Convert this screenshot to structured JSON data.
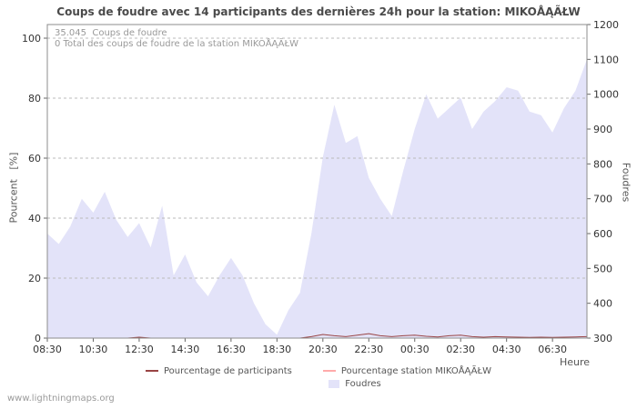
{
  "title": "Coups de foudre avec 14 participants des dernières 24h pour la station: MIKOÅĄÃŁW",
  "annotations": {
    "line1": "35.045  Coups de foudre",
    "line2": "0 Total des coups de foudre de la station MIKOÅĄÃŁW"
  },
  "axes": {
    "left_label": "Pourcent   [%]",
    "right_label": "Foudres",
    "x_label": "Heure"
  },
  "watermark": "www.lightningmaps.org",
  "colors": {
    "area_fill": "#e3e3f9",
    "participants_line": "#994444",
    "station_line": "#ffaaaa",
    "grid": "#bbbbbb",
    "plot_border": "#8c8c8c"
  },
  "chart_data": {
    "type": "area",
    "title": "Coups de foudre avec 14 participants des dernières 24h pour la station: MIKOÅĄÃŁW",
    "xlabel": "Heure",
    "grid": true,
    "legend_position": "bottom",
    "tick_every": 4,
    "x": [
      "08:30",
      "09:00",
      "09:30",
      "10:00",
      "10:30",
      "11:00",
      "11:30",
      "12:00",
      "12:30",
      "13:00",
      "13:30",
      "14:00",
      "14:30",
      "15:00",
      "15:30",
      "16:00",
      "16:30",
      "17:00",
      "17:30",
      "18:00",
      "18:30",
      "19:00",
      "19:30",
      "20:00",
      "20:30",
      "21:00",
      "21:30",
      "22:00",
      "22:30",
      "23:00",
      "23:30",
      "00:00",
      "00:30",
      "01:00",
      "01:30",
      "02:00",
      "02:30",
      "03:00",
      "03:30",
      "04:00",
      "04:30",
      "05:00",
      "05:30",
      "06:00",
      "06:30",
      "07:00",
      "07:30",
      "08:00"
    ],
    "x_ticks": [
      "08:30",
      "10:30",
      "12:30",
      "14:30",
      "16:30",
      "18:30",
      "20:30",
      "22:30",
      "00:30",
      "02:30",
      "04:30",
      "06:30"
    ],
    "left_axis": {
      "label": "Pourcent [%]",
      "min": 0,
      "max": 100,
      "ticks": [
        0,
        20,
        40,
        60,
        80,
        100
      ]
    },
    "right_axis": {
      "label": "Foudres",
      "min": 300,
      "max": 1200,
      "ticks": [
        300,
        400,
        500,
        600,
        700,
        800,
        900,
        1000,
        1100,
        1200
      ]
    },
    "series": [
      {
        "name": "Foudres",
        "type": "area",
        "axis": "right",
        "color": "#e3e3f9",
        "values": [
          600,
          570,
          620,
          700,
          660,
          720,
          640,
          590,
          630,
          560,
          680,
          480,
          540,
          460,
          420,
          480,
          530,
          480,
          400,
          340,
          310,
          380,
          430,
          600,
          820,
          970,
          860,
          880,
          760,
          700,
          650,
          780,
          900,
          1000,
          930,
          960,
          990,
          900,
          950,
          980,
          1020,
          1010,
          950,
          940,
          890,
          960,
          1010,
          1100
        ]
      },
      {
        "name": "Pourcentage de participants",
        "type": "line",
        "axis": "left",
        "color": "#994444",
        "values": [
          0,
          0,
          0,
          0,
          0,
          0,
          0,
          0,
          0.3,
          0,
          0,
          0,
          0,
          0,
          0,
          0,
          0,
          0,
          0,
          0,
          0,
          0,
          0,
          0.5,
          1.2,
          0.8,
          0.5,
          1.0,
          1.5,
          0.8,
          0.5,
          0.8,
          1.0,
          0.6,
          0.4,
          0.8,
          1.0,
          0.5,
          0.3,
          0.5,
          0.4,
          0.3,
          0.2,
          0.3,
          0.2,
          0.3,
          0.4,
          0.5
        ]
      },
      {
        "name": "Pourcentage station MIKOÅĄÃŁW",
        "type": "line",
        "axis": "left",
        "color": "#ffaaaa",
        "values": [
          0,
          0,
          0,
          0,
          0,
          0,
          0,
          0,
          0,
          0,
          0,
          0,
          0,
          0,
          0,
          0,
          0,
          0,
          0,
          0,
          0,
          0,
          0,
          0,
          0,
          0,
          0,
          0,
          0,
          0,
          0,
          0,
          0,
          0,
          0,
          0,
          0,
          0,
          0,
          0,
          0,
          0,
          0,
          0,
          0,
          0,
          0,
          0
        ]
      }
    ]
  }
}
